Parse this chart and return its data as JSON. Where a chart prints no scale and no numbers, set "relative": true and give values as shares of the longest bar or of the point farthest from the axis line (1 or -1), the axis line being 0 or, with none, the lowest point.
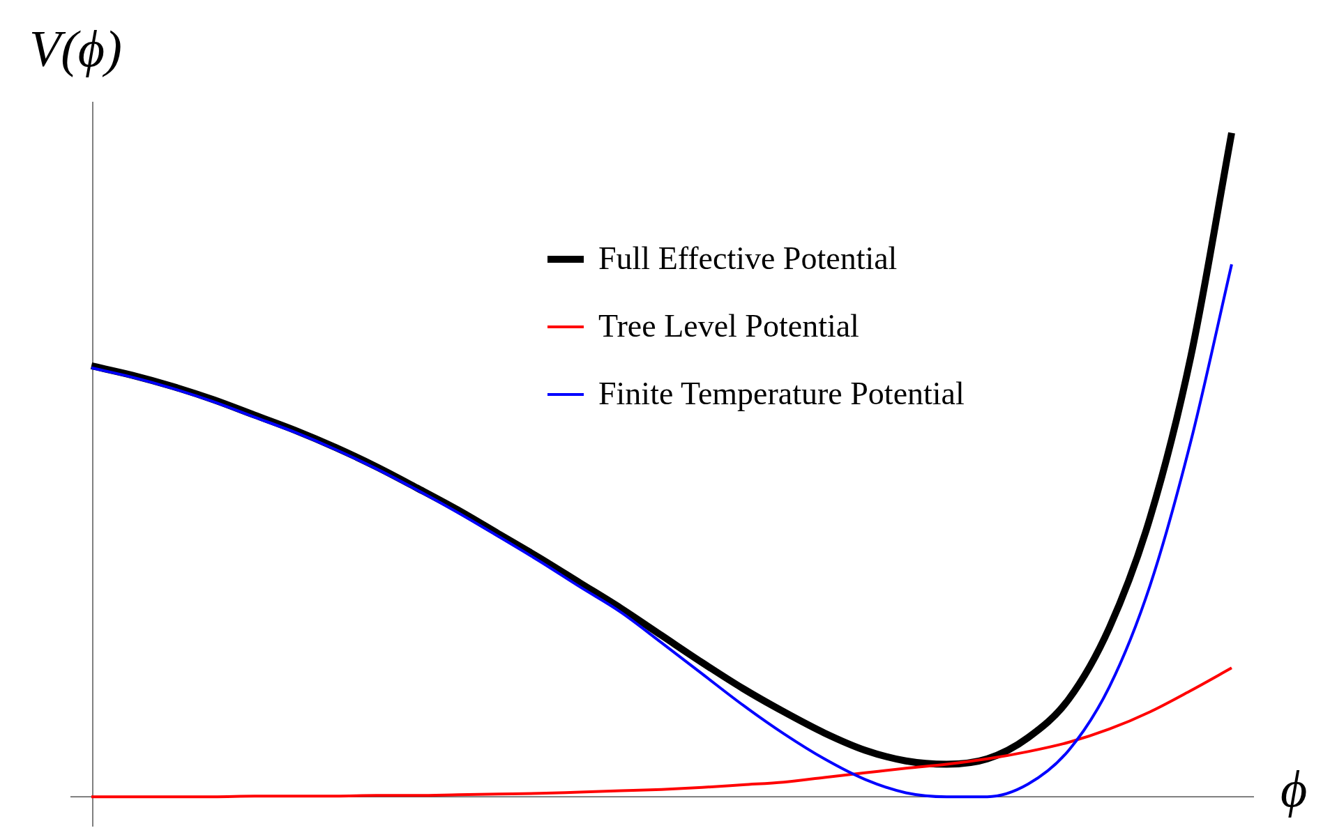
{
  "chart_data": {
    "type": "line",
    "relative": true,
    "xlabel": "ϕ",
    "ylabel": "V(ϕ)",
    "legend": "top right",
    "marker": "none",
    "line_style": "solid",
    "categories": [
      null,
      null,
      null,
      null,
      null,
      null,
      null,
      null,
      null,
      null,
      null,
      null,
      null,
      null,
      null,
      null,
      null,
      null,
      null,
      null,
      null,
      null,
      null,
      null,
      null,
      null,
      null,
      null,
      null
    ],
    "series": [
      {
        "name": "Full Effective Potential",
        "color": "#000000",
        "values": [
          0.649,
          0.635,
          0.618,
          0.598,
          0.575,
          0.552,
          0.526,
          0.497,
          0.465,
          0.432,
          0.396,
          0.36,
          0.322,
          0.284,
          0.243,
          0.202,
          0.163,
          0.128,
          0.096,
          0.07,
          0.054,
          0.049,
          0.057,
          0.089,
          0.147,
          0.255,
          0.421,
          0.664,
          1
        ]
      },
      {
        "name": "Tree Level Potential",
        "color": "#ff0000",
        "values": [
          0,
          0,
          0,
          0,
          0.001,
          0.001,
          0.001,
          0.002,
          0.002,
          0.003,
          0.004,
          0.005,
          0.007,
          0.009,
          0.011,
          0.014,
          0.018,
          0.022,
          0.029,
          0.036,
          0.043,
          0.049,
          0.057,
          0.068,
          0.082,
          0.102,
          0.128,
          0.16,
          0.194
        ]
      },
      {
        "name": "Finite Temperature Potential",
        "color": "#0000ff",
        "values": [
          0.646,
          0.632,
          0.615,
          0.595,
          0.572,
          0.549,
          0.523,
          0.494,
          0.462,
          0.428,
          0.392,
          0.355,
          0.316,
          0.278,
          0.232,
          0.185,
          0.138,
          0.095,
          0.057,
          0.026,
          0.006,
          0,
          0,
          0.019,
          0.07,
          0.166,
          0.319,
          0.536,
          0.802
        ]
      }
    ]
  }
}
